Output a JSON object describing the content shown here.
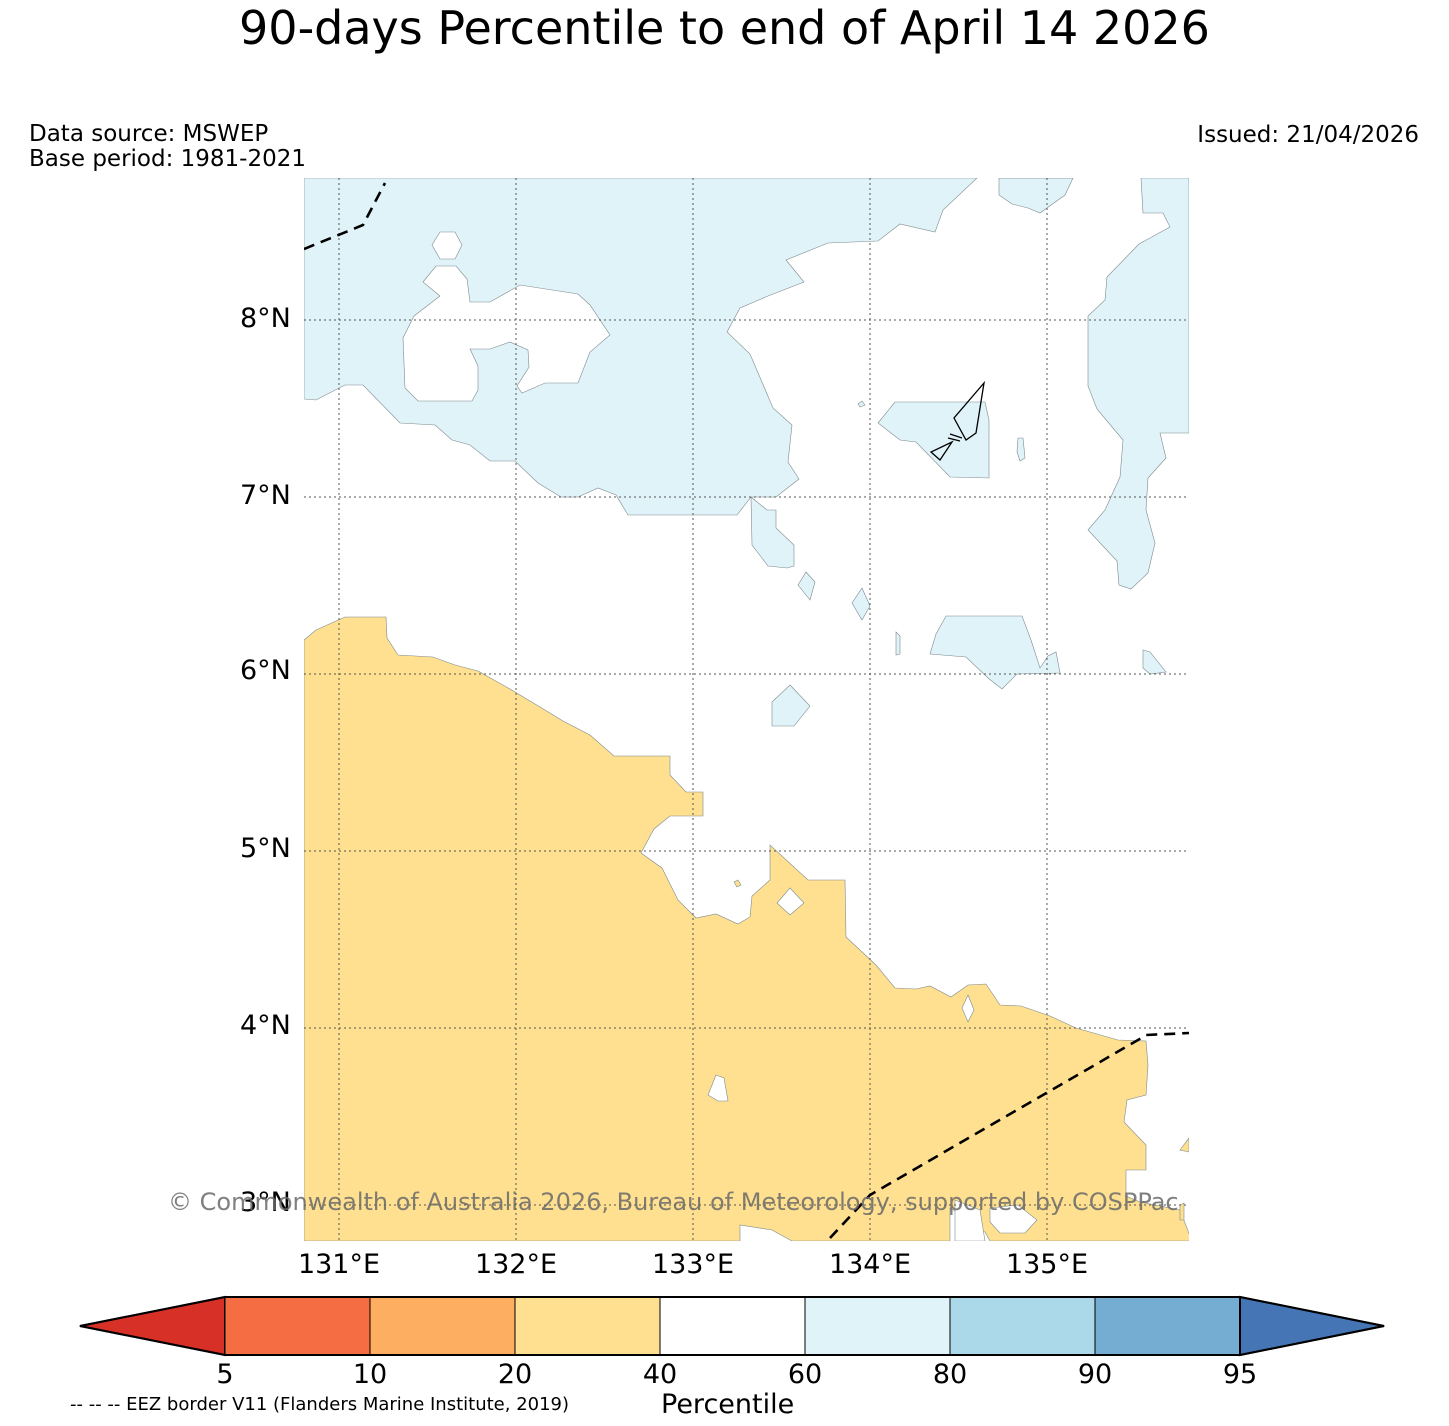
{
  "title": "90-days Percentile to end of April 14 2026",
  "data_source": "Data source: MSWEP",
  "base_period": "Base period: 1981-2021",
  "issued": "Issued: 21/04/2026",
  "copyright": "© Commonwealth of Australia 2026, Bureau of Meteorology, supported by COSPPac",
  "eez_note": "-- -- -- EEZ border V11 (Flanders Marine Institute, 2019)",
  "map": {
    "lat_labels": [
      "8°N",
      "7°N",
      "6°N",
      "5°N",
      "4°N",
      "3°N"
    ],
    "lon_labels": [
      "131°E",
      "132°E",
      "133°E",
      "134°E",
      "135°E"
    ]
  },
  "colorbar": {
    "label": "Percentile",
    "ticks": [
      "5",
      "10",
      "20",
      "40",
      "60",
      "80",
      "90",
      "95"
    ],
    "colors": {
      "below_5": "#d73027",
      "5_10": "#f46d43",
      "10_20": "#fdae61",
      "20_40": "#fee090",
      "40_60": "#ffffff",
      "60_80": "#e0f3f8",
      "80_90": "#abd9e9",
      "90_95": "#74add1",
      "above_95": "#4575b4"
    }
  }
}
